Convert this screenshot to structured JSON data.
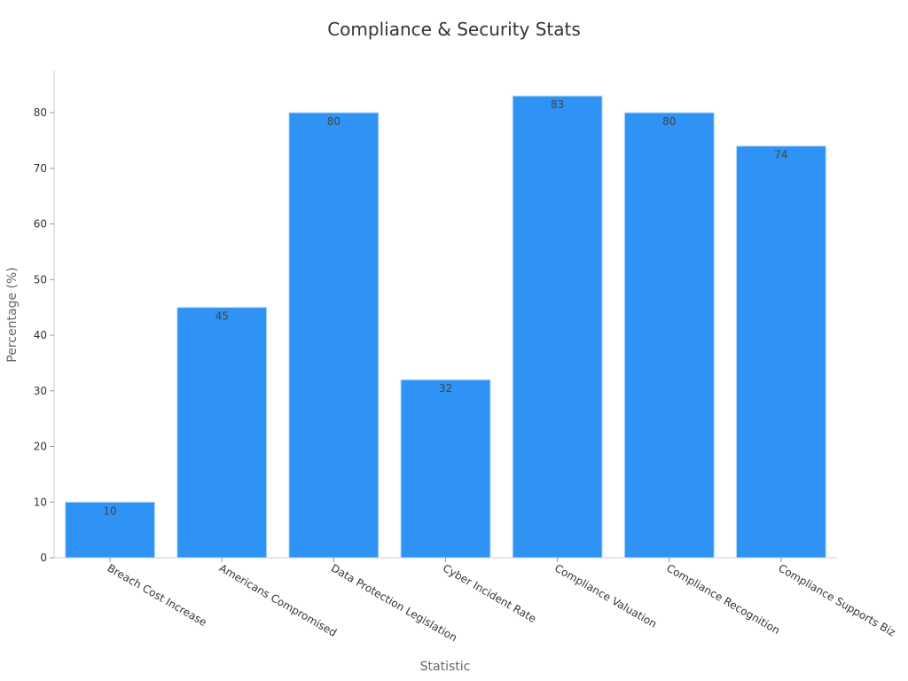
{
  "chart_data": {
    "type": "bar",
    "title": "Compliance & Security Stats",
    "xlabel": "Statistic",
    "ylabel": "Percentage (%)",
    "categories": [
      "Breach Cost Increase",
      "Americans Compromised",
      "Data Protection Legislation",
      "Cyber Incident Rate",
      "Compliance Valuation",
      "Compliance Recognition",
      "Compliance Supports Biz"
    ],
    "values": [
      10,
      45,
      80,
      32,
      83,
      80,
      74
    ],
    "ylim": [
      0,
      87.5
    ],
    "yticks": [
      0,
      10,
      20,
      30,
      40,
      50,
      60,
      70,
      80
    ],
    "grid": false,
    "bar_color": "#2e93f5",
    "bar_edge_color": "#b9dcfb"
  }
}
